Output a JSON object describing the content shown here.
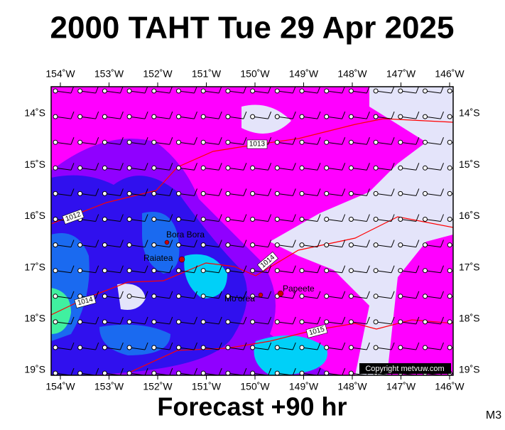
{
  "header": {
    "title": "2000 TAHT Tue 29 Apr 2025"
  },
  "axes": {
    "lon_labels": [
      "154˚W",
      "153˚W",
      "152˚W",
      "151˚W",
      "150˚W",
      "149˚W",
      "148˚W",
      "147˚W",
      "146˚W"
    ],
    "lat_labels": [
      "14˚S",
      "15˚S",
      "16˚S",
      "17˚S",
      "18˚S",
      "19˚S"
    ]
  },
  "places": [
    "Bora Bora",
    "Raiatea",
    "Mo'orea",
    "Papeete"
  ],
  "isobars": [
    "1013",
    "1012",
    "1014",
    "1014",
    "1015"
  ],
  "copyright": "Copyright metvuw.com",
  "footer": {
    "forecast": "Forecast +90 hr",
    "model": "M3"
  }
}
